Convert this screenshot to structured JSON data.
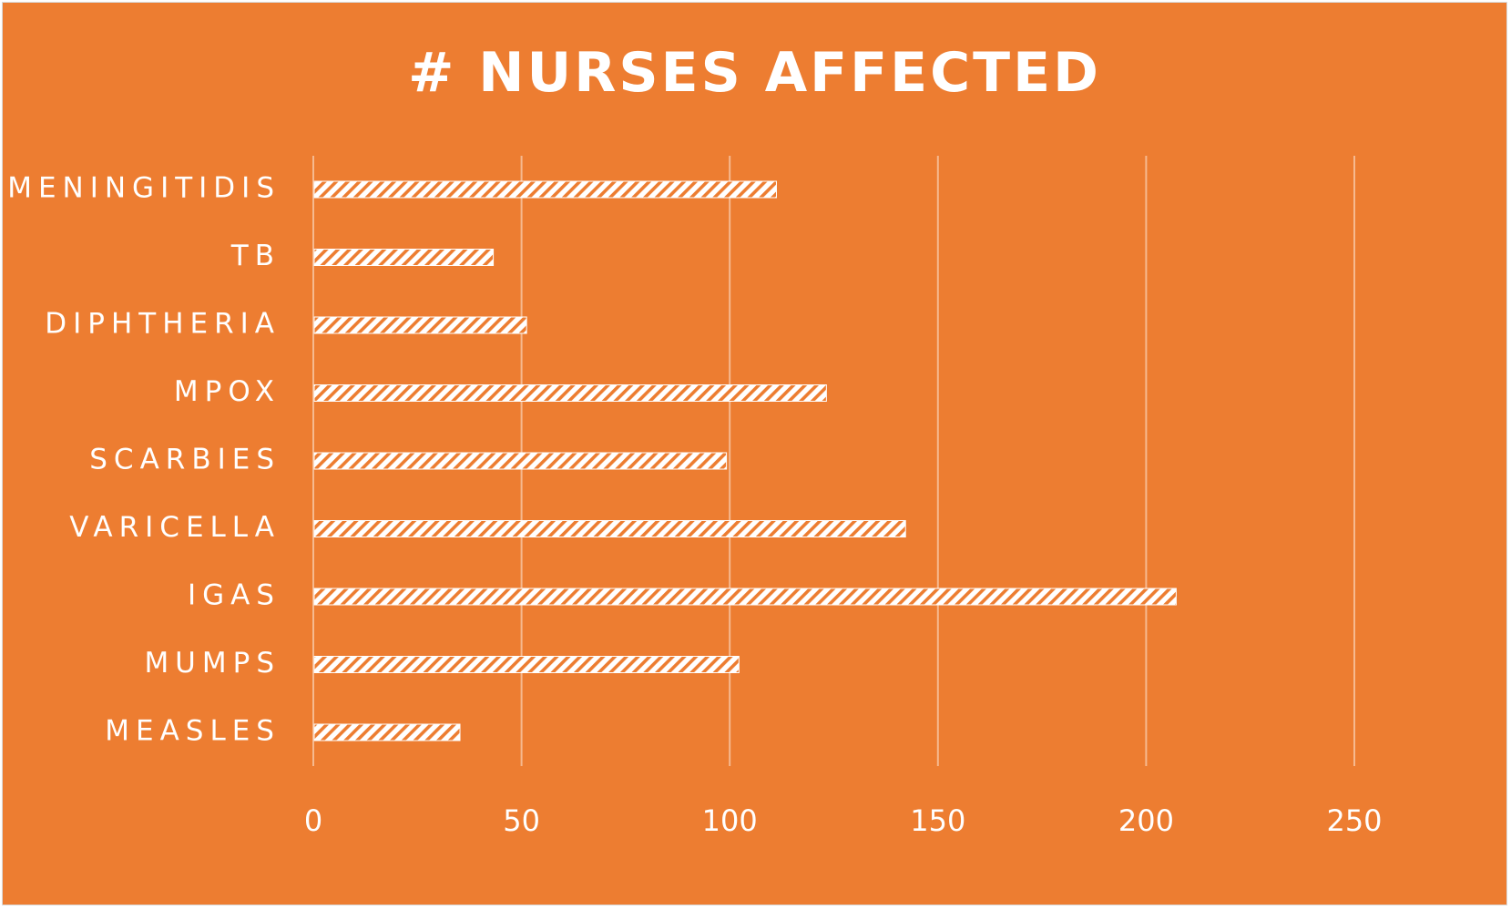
{
  "chart_data": {
    "type": "bar",
    "orientation": "horizontal",
    "title": "# NURSES AFFECTED",
    "categories": [
      "MENINGITIDIS",
      "TB",
      "DIPHTHERIA",
      "MPOX",
      "SCARBIES",
      "VARICELLA",
      "IGAS",
      "MUMPS",
      "MEASLES"
    ],
    "values": [
      111,
      43,
      51,
      123,
      99,
      142,
      207,
      102,
      35
    ],
    "xticks": [
      "0",
      "50",
      "100",
      "150",
      "200",
      "250"
    ],
    "xlim": [
      0,
      250
    ],
    "grid": "vertical",
    "legend": "none",
    "colors": {
      "background": "#ED7D31",
      "bar": "#ffffff",
      "bar_pattern": "#ED7D31",
      "gridline": "#f6b98f",
      "text": "#ffffff"
    }
  }
}
